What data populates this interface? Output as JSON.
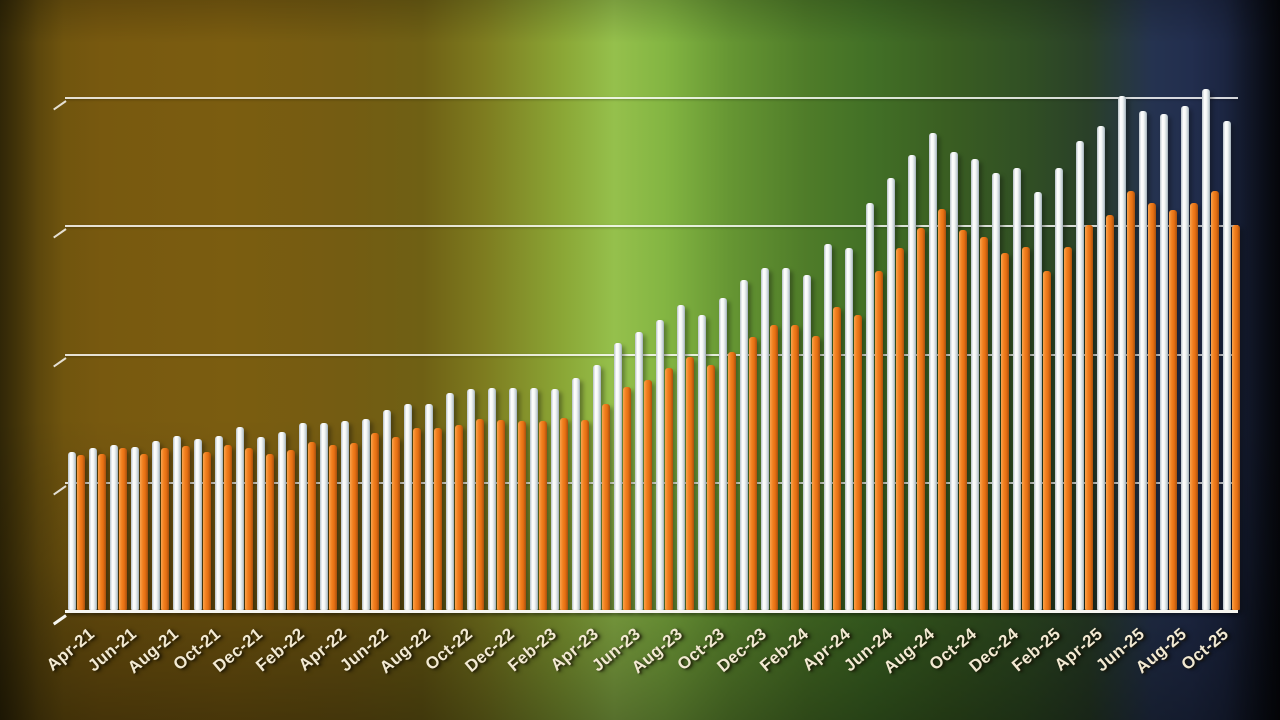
{
  "chart_data": {
    "type": "bar",
    "title": "",
    "xlabel": "",
    "ylabel": "",
    "legend_position": "none",
    "grid": true,
    "y_axis_tick_labels_visible": false,
    "y_unit": "gridline-units (no numeric axis labels shown; 1 unit = one gridline spacing)",
    "ylim": [
      0,
      4.2
    ],
    "gridline_values": [
      1,
      2,
      3,
      4
    ],
    "categories": [
      "Apr-21",
      "May-21",
      "Jun-21",
      "Jul-21",
      "Aug-21",
      "Sep-21",
      "Oct-21",
      "Nov-21",
      "Dec-21",
      "Jan-22",
      "Feb-22",
      "Mar-22",
      "Apr-22",
      "May-22",
      "Jun-22",
      "Jul-22",
      "Aug-22",
      "Sep-22",
      "Oct-22",
      "Nov-22",
      "Dec-22",
      "Jan-23",
      "Feb-23",
      "Mar-23",
      "Apr-23",
      "May-23",
      "Jun-23",
      "Jul-23",
      "Aug-23",
      "Sep-23",
      "Oct-23",
      "Nov-23",
      "Dec-23",
      "Jan-24",
      "Feb-24",
      "Mar-24",
      "Apr-24",
      "May-24",
      "Jun-24",
      "Jul-24",
      "Aug-24",
      "Sep-24",
      "Oct-24",
      "Nov-24",
      "Dec-24",
      "Jan-25",
      "Feb-25",
      "Mar-25",
      "Apr-25",
      "May-25",
      "Jun-25",
      "Jul-25",
      "Aug-25",
      "Sep-25",
      "Oct-25",
      "Nov-25"
    ],
    "x_tick_labels_shown": [
      "Apr-21",
      "Jun-21",
      "Aug-21",
      "Oct-21",
      "Dec-21",
      "Feb-22",
      "Apr-22",
      "Jun-22",
      "Aug-22",
      "Oct-22",
      "Dec-22",
      "Feb-23",
      "Apr-23",
      "Jun-23",
      "Aug-23",
      "Oct-23",
      "Dec-23",
      "Feb-24",
      "Apr-24",
      "Jun-24",
      "Aug-24",
      "Oct-24",
      "Dec-24",
      "Feb-25",
      "Apr-25",
      "Jun-25",
      "Aug-25",
      "Oct-25"
    ],
    "x_tick_label_step": 2,
    "series": [
      {
        "name": "white",
        "color": "#f4f6f4",
        "values": [
          1.23,
          1.26,
          1.29,
          1.27,
          1.32,
          1.36,
          1.33,
          1.36,
          1.43,
          1.35,
          1.39,
          1.46,
          1.46,
          1.47,
          1.49,
          1.56,
          1.61,
          1.61,
          1.69,
          1.72,
          1.73,
          1.73,
          1.73,
          1.72,
          1.81,
          1.91,
          2.08,
          2.17,
          2.26,
          2.38,
          2.3,
          2.43,
          2.57,
          2.67,
          2.67,
          2.61,
          2.85,
          2.82,
          3.17,
          3.37,
          3.55,
          3.72,
          3.57,
          3.52,
          3.41,
          3.45,
          3.26,
          3.45,
          3.66,
          3.77,
          4.01,
          3.89,
          3.87,
          3.93,
          4.06,
          3.81
        ]
      },
      {
        "name": "orange",
        "color": "#ee7b1c",
        "values": [
          1.21,
          1.22,
          1.26,
          1.22,
          1.26,
          1.28,
          1.23,
          1.29,
          1.26,
          1.22,
          1.25,
          1.31,
          1.29,
          1.3,
          1.38,
          1.35,
          1.42,
          1.42,
          1.44,
          1.49,
          1.48,
          1.47,
          1.47,
          1.5,
          1.48,
          1.61,
          1.74,
          1.79,
          1.89,
          1.97,
          1.91,
          2.01,
          2.13,
          2.22,
          2.22,
          2.14,
          2.36,
          2.3,
          2.64,
          2.82,
          2.98,
          3.13,
          2.96,
          2.91,
          2.78,
          2.83,
          2.64,
          2.83,
          3.0,
          3.08,
          3.27,
          3.17,
          3.12,
          3.17,
          3.27,
          3.0
        ]
      }
    ]
  },
  "colors": {
    "background_left": "#7b5d10",
    "background_center": "#95c04c",
    "background_right": "#1c2642",
    "gridline": "#ffffff",
    "baseline": "#f7f6f0",
    "x_label_text": "#f2e9d2"
  }
}
